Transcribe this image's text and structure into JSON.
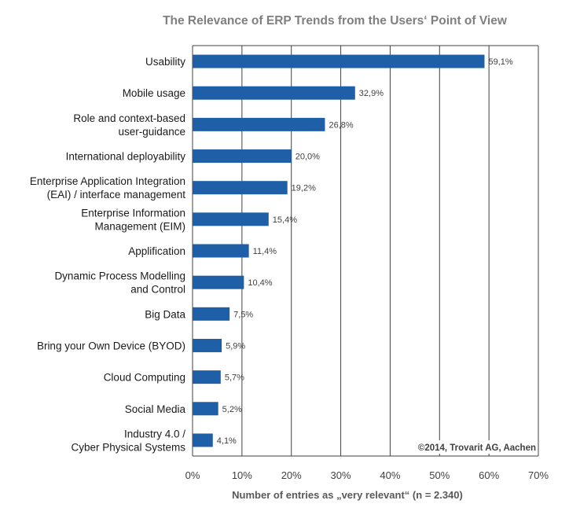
{
  "chart_data": {
    "type": "bar",
    "orientation": "horizontal",
    "title": "The Relevance of ERP Trends from the Users‘ Point of View",
    "xlabel": "Number of entries as „very relevant“ (n = 2.340)",
    "ylabel": "",
    "xlim": [
      0,
      70
    ],
    "grid": true,
    "x_ticks": [
      "0%",
      "10%",
      "20%",
      "30%",
      "40%",
      "50%",
      "60%",
      "70%"
    ],
    "categories": [
      [
        "Usability"
      ],
      [
        "Mobile usage"
      ],
      [
        "Role and context-based",
        "user-guidance"
      ],
      [
        "International deployability"
      ],
      [
        "Enterprise Application Integration",
        "(EAI) / interface management"
      ],
      [
        "Enterprise Information",
        "Management (EIM)"
      ],
      [
        "Applification"
      ],
      [
        "Dynamic Process Modelling",
        "and Control"
      ],
      [
        "Big Data"
      ],
      [
        "Bring your Own Device (BYOD)"
      ],
      [
        "Cloud Computing"
      ],
      [
        "Social Media"
      ],
      [
        "Industry 4.0 /",
        "Cyber Physical Systems"
      ]
    ],
    "values": [
      59.1,
      32.9,
      26.8,
      20.0,
      19.2,
      15.4,
      11.4,
      10.4,
      7.5,
      5.9,
      5.7,
      5.2,
      4.1
    ],
    "value_labels": [
      "59,1%",
      "32,9%",
      "26,8%",
      "20,0%",
      "19,2%",
      "15,4%",
      "11,4%",
      "10,4%",
      "7,5%",
      "5,9%",
      "5,7%",
      "5,2%",
      "4,1%"
    ],
    "bar_color": "#1f5fa8",
    "grid_color": "#404040",
    "credit": "©2014, Trovarit AG, Aachen"
  }
}
